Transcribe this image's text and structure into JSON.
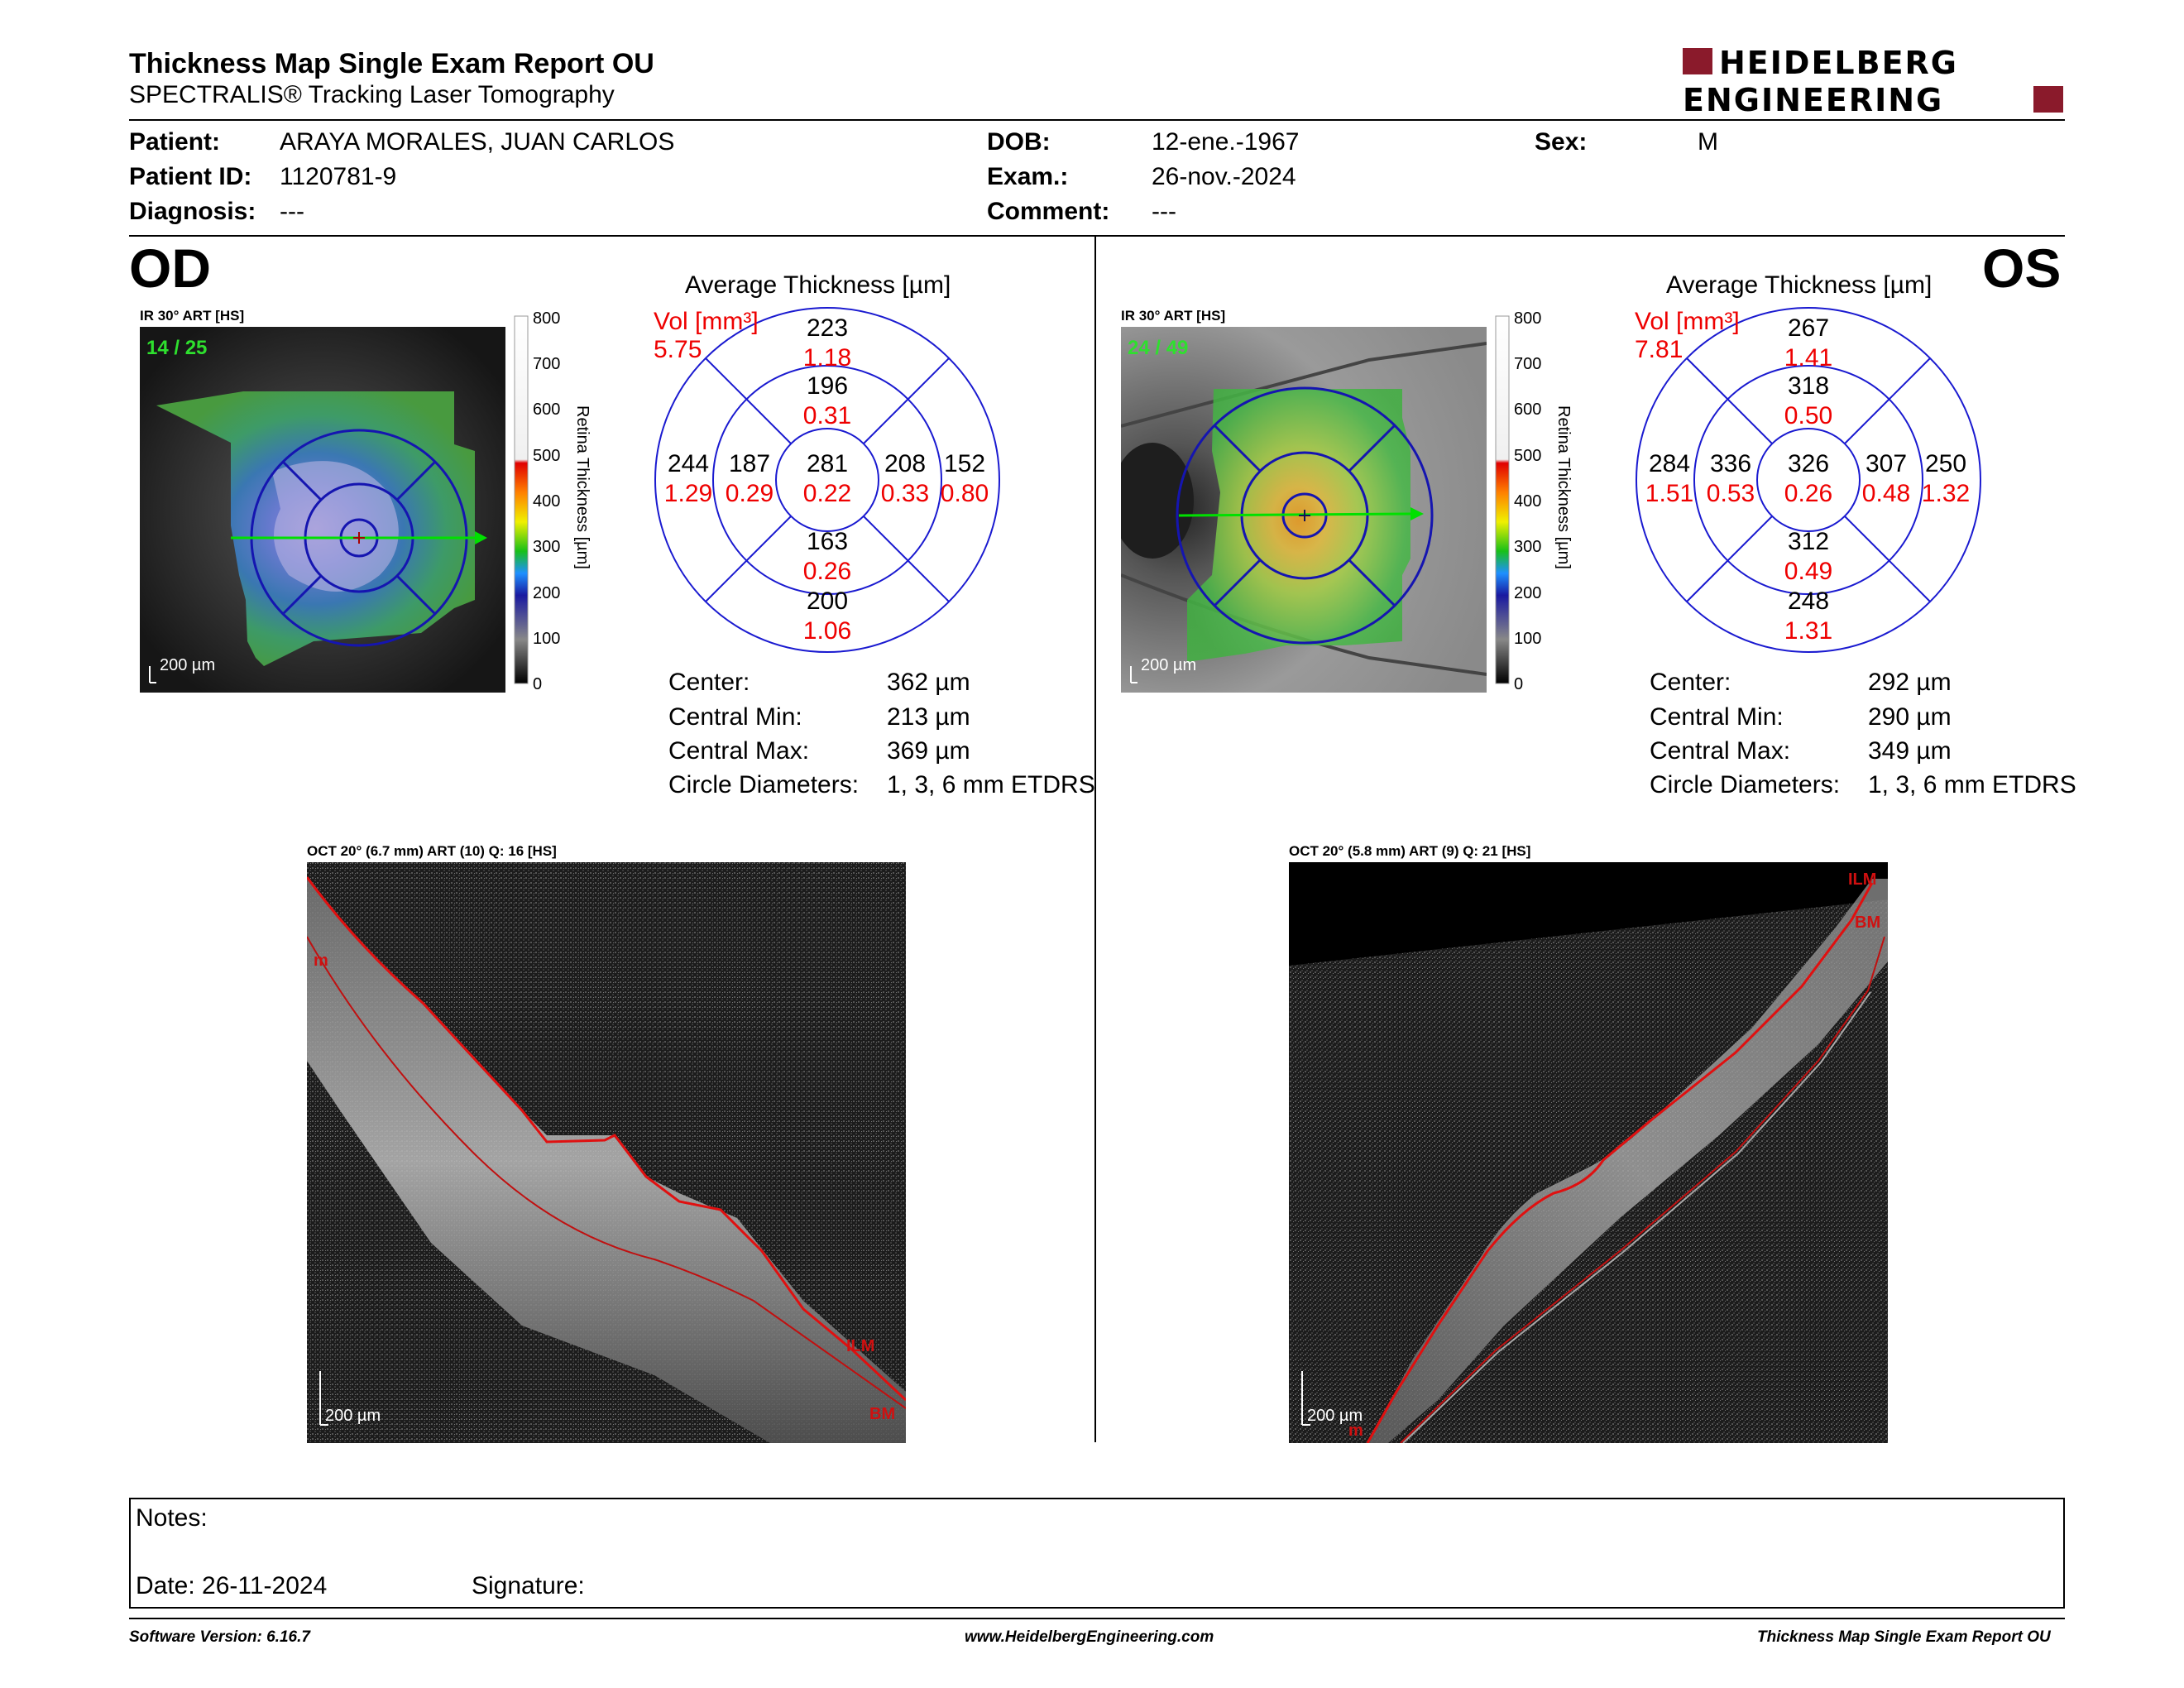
{
  "header": {
    "title": "Thickness Map Single Exam Report OU",
    "subtitle": "SPECTRALIS® Tracking Laser Tomography",
    "logo_line1": "HEIDELBERG",
    "logo_line2": "ENGINEERING"
  },
  "patient": {
    "patient_label": "Patient:",
    "patient_value": "ARAYA MORALES, JUAN CARLOS",
    "id_label": "Patient ID:",
    "id_value": "1120781-9",
    "diagnosis_label": "Diagnosis:",
    "diagnosis_value": "---",
    "dob_label": "DOB:",
    "dob_value": "12-ene.-1967",
    "exam_label": "Exam.:",
    "exam_value": "26-nov.-2024",
    "comment_label": "Comment:",
    "comment_value": "---",
    "sex_label": "Sex:",
    "sex_value": "M"
  },
  "od": {
    "eye": "OD",
    "ir_label": "IR 30° ART [HS]",
    "frame_counter": "14 / 25",
    "scale": "200 µm",
    "avg_title": "Average Thickness [µm]",
    "vol_label": "Vol [mm³]",
    "vol_total": "5.75",
    "etdrs": {
      "center_t": "281",
      "center_v": "0.22",
      "inner_sup_t": "196",
      "inner_sup_v": "0.31",
      "inner_inf_t": "163",
      "inner_inf_v": "0.26",
      "inner_left_t": "187",
      "inner_left_v": "0.29",
      "inner_right_t": "208",
      "inner_right_v": "0.33",
      "outer_sup_t": "223",
      "outer_sup_v": "1.18",
      "outer_inf_t": "200",
      "outer_inf_v": "1.06",
      "outer_left_t": "244",
      "outer_left_v": "1.29",
      "outer_right_t": "152",
      "outer_right_v": "0.80"
    },
    "stats": {
      "center_label": "Center:",
      "center_value": "362 µm",
      "min_label": "Central Min:",
      "min_value": "213 µm",
      "max_label": "Central Max:",
      "max_value": "369 µm",
      "diam_label": "Circle Diameters:",
      "diam_value": "1, 3, 6 mm ETDRS"
    },
    "oct_label": "OCT 20° (6.7 mm) ART (10) Q: 16 [HS]",
    "oct_scale": "200 µm",
    "ilm": "ILM",
    "bm": "BM",
    "m": "m"
  },
  "os": {
    "eye": "OS",
    "ir_label": "IR 30° ART [HS]",
    "frame_counter": "24 / 49",
    "scale": "200 µm",
    "avg_title": "Average Thickness [µm]",
    "vol_label": "Vol [mm³]",
    "vol_total": "7.81",
    "etdrs": {
      "center_t": "326",
      "center_v": "0.26",
      "inner_sup_t": "318",
      "inner_sup_v": "0.50",
      "inner_inf_t": "312",
      "inner_inf_v": "0.49",
      "inner_left_t": "336",
      "inner_left_v": "0.53",
      "inner_right_t": "307",
      "inner_right_v": "0.48",
      "outer_sup_t": "267",
      "outer_sup_v": "1.41",
      "outer_inf_t": "248",
      "outer_inf_v": "1.31",
      "outer_left_t": "284",
      "outer_left_v": "1.51",
      "outer_right_t": "250",
      "outer_right_v": "1.32"
    },
    "stats": {
      "center_label": "Center:",
      "center_value": "292 µm",
      "min_label": "Central Min:",
      "min_value": "290 µm",
      "max_label": "Central Max:",
      "max_value": "349 µm",
      "diam_label": "Circle Diameters:",
      "diam_value": "1, 3, 6 mm ETDRS"
    },
    "oct_label": "OCT 20° (5.8 mm) ART (9) Q: 21 [HS]",
    "oct_scale": "200 µm",
    "ilm": "ILM",
    "bm": "BM",
    "m": "m"
  },
  "colorbar": {
    "ticks": [
      "800",
      "700",
      "600",
      "500",
      "400",
      "300",
      "200",
      "100",
      "0"
    ],
    "label": "Retina Thickness [µm]"
  },
  "notes": {
    "notes_label": "Notes:",
    "date_label": "Date: 26-11-2024",
    "signature_label": "Signature:"
  },
  "footer": {
    "software": "Software Version: 6.16.7",
    "website": "www.HeidelbergEngineering.com",
    "report": "Thickness Map Single Exam Report OU"
  }
}
